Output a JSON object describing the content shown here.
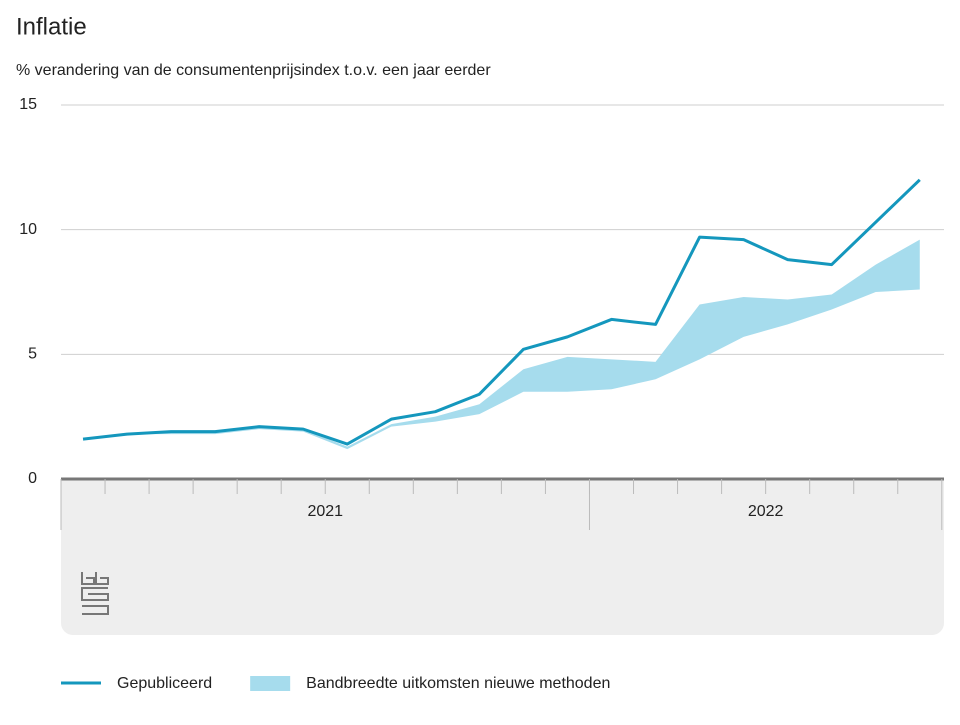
{
  "chart_data": {
    "type": "line",
    "title": "Inflatie",
    "subtitle": "% verandering van de consumentenprijsindex t.o.v. een jaar eerder",
    "categories": [
      null,
      null,
      null,
      null,
      null,
      null,
      null,
      null,
      null,
      null,
      null,
      null,
      null,
      null,
      null,
      null,
      null,
      null,
      null,
      null
    ],
    "x_groups": [
      {
        "label": "2021",
        "span": 12
      },
      {
        "label": "2022",
        "span": 8
      }
    ],
    "ylim": [
      0,
      15
    ],
    "yticks": [
      0,
      5,
      10,
      15
    ],
    "grid": true,
    "legend": "bottom",
    "series": [
      {
        "name": "Gepubliceerd",
        "type": "line",
        "color": "#1497bd",
        "values": [
          1.6,
          1.8,
          1.9,
          1.9,
          2.1,
          2.0,
          1.4,
          2.4,
          2.7,
          3.4,
          5.2,
          5.7,
          6.4,
          6.2,
          9.7,
          9.6,
          8.8,
          8.6,
          10.3,
          12.0
        ]
      },
      {
        "name": "Bandbreedte uitkomsten nieuwe methoden",
        "type": "band",
        "color": "#a6dced",
        "lower": [
          1.6,
          1.8,
          1.8,
          1.8,
          2.0,
          1.9,
          1.2,
          2.1,
          2.3,
          2.6,
          3.5,
          3.5,
          3.6,
          4.0,
          4.8,
          5.7,
          6.2,
          6.8,
          7.5,
          7.6
        ],
        "upper": [
          1.6,
          1.8,
          1.9,
          1.9,
          2.1,
          2.0,
          1.3,
          2.2,
          2.5,
          3.0,
          4.4,
          4.9,
          4.8,
          4.7,
          7.0,
          7.3,
          7.2,
          7.4,
          8.6,
          9.6
        ]
      }
    ]
  }
}
